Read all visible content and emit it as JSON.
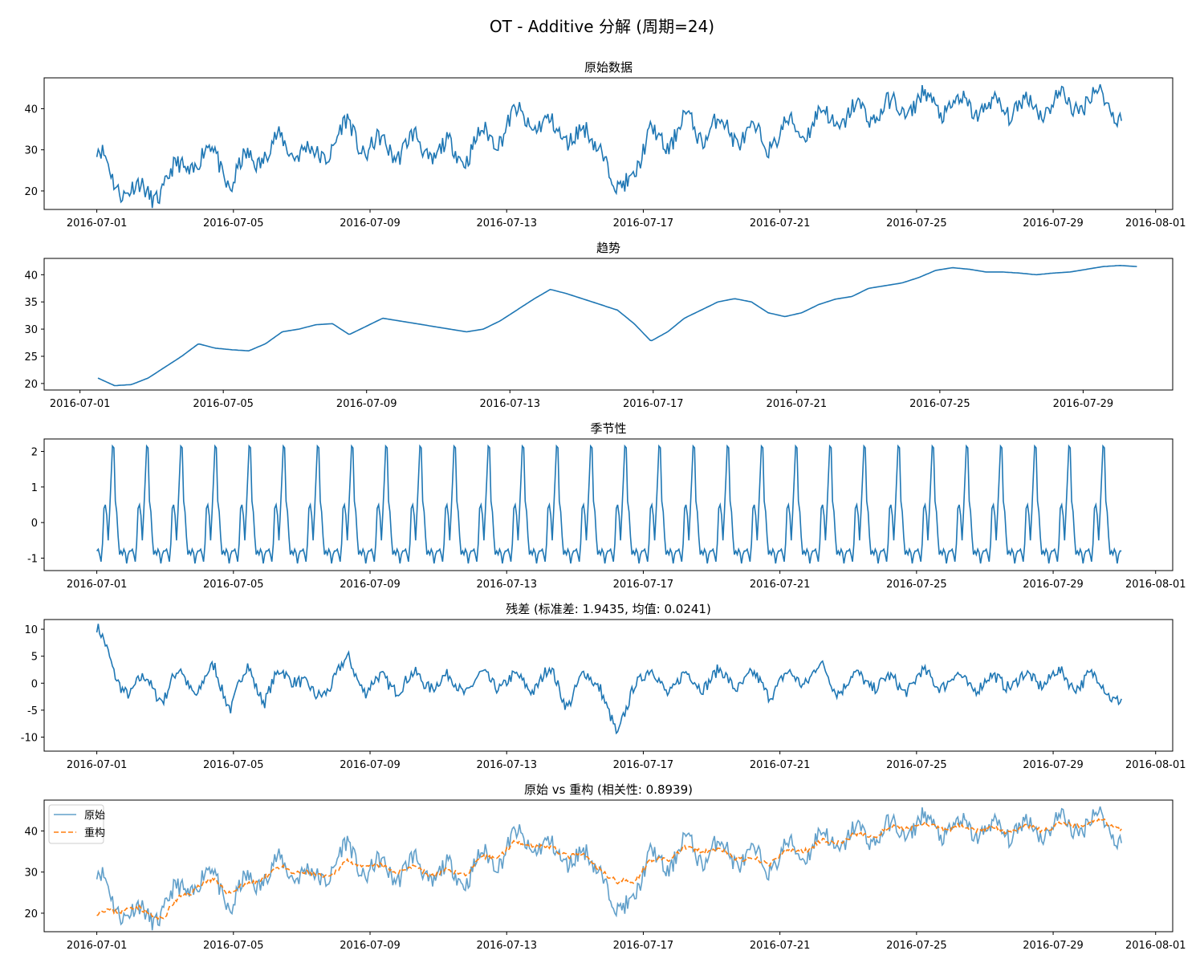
{
  "figure": {
    "title": "OT - Additive 分解 (周期=24)"
  },
  "colors": {
    "series_blue": "#1f77b4",
    "series_orange": "#ff7f0e",
    "axis": "#000000"
  },
  "chart_data": [
    {
      "id": "original",
      "type": "line",
      "title": "原始数据",
      "x_start": "2016-07-01 00:00",
      "x_end": "2016-07-31 00:00",
      "xlim": [
        "2016-06-29T11:00",
        "2016-08-01T12:00"
      ],
      "ylim": [
        15.5,
        47.5
      ],
      "xticks": [
        "2016-07-01",
        "2016-07-05",
        "2016-07-09",
        "2016-07-13",
        "2016-07-17",
        "2016-07-21",
        "2016-07-25",
        "2016-07-29",
        "2016-08-01"
      ],
      "yticks": [
        20,
        30,
        40
      ],
      "series": [
        {
          "name": "原始数据",
          "color": "#1f77b4",
          "x": [
            "07-01",
            "07-01.25",
            "07-01.5",
            "07-02",
            "07-02.5",
            "07-03",
            "07-03.5",
            "07-04",
            "07-04.5",
            "07-05",
            "07-05.5",
            "07-06",
            "07-06.5",
            "07-07",
            "07-07.5",
            "07-08",
            "07-08.5",
            "07-09",
            "07-09.5",
            "07-10",
            "07-10.5",
            "07-11",
            "07-11.5",
            "07-12",
            "07-12.5",
            "07-13",
            "07-13.5",
            "07-14",
            "07-14.5",
            "07-15",
            "07-15.5",
            "07-16",
            "07-16.5",
            "07-17",
            "07-17.5",
            "07-18",
            "07-18.5",
            "07-19",
            "07-19.5",
            "07-20",
            "07-20.5",
            "07-21",
            "07-21.5",
            "07-22",
            "07-22.5",
            "07-23",
            "07-23.5",
            "07-24",
            "07-24.5",
            "07-25",
            "07-25.5",
            "07-26",
            "07-26.5",
            "07-27",
            "07-27.5",
            "07-28",
            "07-28.5",
            "07-29",
            "07-29.5",
            "07-30",
            "07-30.5",
            "07-31"
          ],
          "values": [
            30.5,
            22.0,
            20.5,
            19.0,
            21.0,
            26.0,
            27.0,
            30.0,
            21.0,
            28.0,
            29.0,
            32.0,
            30.0,
            28.0,
            31.0,
            36.0,
            30.0,
            31.0,
            30.0,
            32.0,
            29.0,
            30.0,
            29.0,
            33.0,
            34.0,
            38.0,
            37.0,
            35.0,
            34.0,
            33.0,
            32.0,
            18.0,
            26.0,
            33.0,
            32.0,
            37.0,
            34.0,
            36.0,
            34.0,
            33.0,
            32.0,
            35.0,
            35.0,
            38.0,
            37.0,
            39.0,
            39.0,
            40.0,
            40.0,
            42.0,
            41.0,
            40.0,
            41.0,
            40.0,
            40.0,
            41.0,
            40.0,
            42.0,
            41.0,
            42.0,
            43.0,
            38.0
          ]
        }
      ]
    },
    {
      "id": "trend",
      "type": "line",
      "title": "趋势",
      "x_start": "2016-07-01 12:00",
      "x_end": "2016-07-30 12:00",
      "xlim": [
        "2016-06-30T00:00",
        "2016-07-31T12:00"
      ],
      "ylim": [
        18.8,
        43.0
      ],
      "xticks": [
        "2016-07-01",
        "2016-07-05",
        "2016-07-09",
        "2016-07-13",
        "2016-07-17",
        "2016-07-21",
        "2016-07-25",
        "2016-07-29"
      ],
      "yticks": [
        20,
        25,
        30,
        35,
        40
      ],
      "series": [
        {
          "name": "趋势",
          "color": "#1f77b4",
          "values": [
            21.0,
            19.6,
            19.8,
            21.0,
            23.0,
            25.0,
            27.3,
            26.5,
            26.2,
            26.0,
            27.3,
            29.5,
            30.0,
            30.8,
            31.0,
            29.0,
            30.5,
            32.0,
            31.5,
            31.0,
            30.5,
            30.0,
            29.5,
            30.0,
            31.5,
            33.5,
            35.5,
            37.3,
            36.5,
            35.5,
            34.5,
            33.5,
            31.0,
            27.8,
            29.5,
            32.0,
            33.5,
            35.0,
            35.6,
            35.0,
            33.0,
            32.3,
            33.0,
            34.5,
            35.5,
            36.0,
            37.5,
            38.0,
            38.5,
            39.5,
            40.8,
            41.3,
            41.0,
            40.5,
            40.5,
            40.3,
            40.0,
            40.3,
            40.5,
            41.0,
            41.5,
            41.7,
            41.5
          ]
        }
      ]
    },
    {
      "id": "seasonal",
      "type": "line",
      "title": "季节性",
      "period": 24,
      "cycles": 30,
      "x_start": "2016-07-01 00:00",
      "x_end": "2016-07-31 00:00",
      "xlim": [
        "2016-06-29T11:00",
        "2016-08-01T12:00"
      ],
      "ylim": [
        -1.35,
        2.35
      ],
      "xticks": [
        "2016-07-01",
        "2016-07-05",
        "2016-07-09",
        "2016-07-13",
        "2016-07-17",
        "2016-07-21",
        "2016-07-25",
        "2016-07-29",
        "2016-08-01"
      ],
      "yticks": [
        -1,
        0,
        1,
        2
      ],
      "series": [
        {
          "name": "季节性",
          "color": "#1f77b4",
          "values": [
            -0.8,
            -0.75,
            -0.9,
            -1.1,
            -0.6,
            0.4,
            0.5,
            0.2,
            -0.5,
            0.3,
            1.2,
            2.15,
            2.1,
            0.6,
            0.3,
            -0.4,
            -0.9,
            -0.8,
            -0.9,
            -0.75,
            -0.85,
            -1.15,
            -0.9,
            -0.8
          ]
        }
      ]
    },
    {
      "id": "residual",
      "type": "line",
      "title": "残差 (标准差: 1.9435, 均值: 0.0241)",
      "x_start": "2016-07-01 00:00",
      "x_end": "2016-07-31 00:00",
      "xlim": [
        "2016-06-29T11:00",
        "2016-08-01T12:00"
      ],
      "ylim": [
        -12.6,
        11.8
      ],
      "xticks": [
        "2016-07-01",
        "2016-07-05",
        "2016-07-09",
        "2016-07-13",
        "2016-07-17",
        "2016-07-21",
        "2016-07-25",
        "2016-07-29",
        "2016-08-01"
      ],
      "yticks": [
        10,
        5,
        0,
        -5,
        -10
      ],
      "series": [
        {
          "name": "残差",
          "color": "#1f77b4",
          "values": [
            10.5,
            2.0,
            -2.0,
            1.0,
            -3.0,
            2.5,
            -2.0,
            3.0,
            -4.5,
            3.0,
            -3.0,
            2.0,
            1.0,
            -3.0,
            0.5,
            4.0,
            -1.0,
            0.5,
            -0.5,
            1.0,
            0.0,
            0.5,
            -1.0,
            1.0,
            0.0,
            0.5,
            -0.5,
            2.0,
            -3.5,
            1.0,
            0.0,
            -11.0,
            1.0,
            1.5,
            -1.0,
            1.0,
            0.0,
            1.5,
            0.0,
            1.0,
            -1.5,
            1.0,
            0.5,
            3.0,
            -1.0,
            1.0,
            0.0,
            0.5,
            -1.0,
            1.5,
            0.0,
            1.0,
            -0.5,
            0.5,
            0.0,
            1.0,
            0.0,
            2.0,
            -0.5,
            1.5,
            -1.0,
            -3.0
          ]
        }
      ]
    },
    {
      "id": "reconstruction",
      "type": "line",
      "title": "原始 vs 重构 (相关性: 0.8939)",
      "x_start": "2016-07-01 00:00",
      "x_end": "2016-07-31 00:00",
      "xlim": [
        "2016-06-29T11:00",
        "2016-08-01T12:00"
      ],
      "ylim": [
        15.5,
        47.5
      ],
      "xticks": [
        "2016-07-01",
        "2016-07-05",
        "2016-07-09",
        "2016-07-13",
        "2016-07-17",
        "2016-07-21",
        "2016-07-25",
        "2016-07-29",
        "2016-08-01"
      ],
      "yticks": [
        20,
        30,
        40
      ],
      "legend": {
        "position": "upper-left",
        "entries": [
          "原始",
          "重构"
        ]
      },
      "series": [
        {
          "name": "原始",
          "color": "#1f77b4",
          "alpha": 0.7,
          "ref": "original"
        },
        {
          "name": "重构",
          "color": "#ff7f0e",
          "style": "dashed",
          "values": [
            20.0,
            20.5,
            21.5,
            20.0,
            19.0,
            24.0,
            26.5,
            28.0,
            25.0,
            27.0,
            29.0,
            31.0,
            30.0,
            29.0,
            29.5,
            32.5,
            31.5,
            31.0,
            30.5,
            31.0,
            29.5,
            30.0,
            30.0,
            33.0,
            34.5,
            37.0,
            37.0,
            35.5,
            34.5,
            33.5,
            31.0,
            27.0,
            28.5,
            32.5,
            33.5,
            35.5,
            35.5,
            35.0,
            34.0,
            32.5,
            32.5,
            34.5,
            35.5,
            37.0,
            37.5,
            38.5,
            39.0,
            40.0,
            41.0,
            41.5,
            41.0,
            40.5,
            41.0,
            40.5,
            40.0,
            40.5,
            40.5,
            41.0,
            41.5,
            42.0,
            42.5,
            40.5
          ]
        }
      ]
    }
  ]
}
